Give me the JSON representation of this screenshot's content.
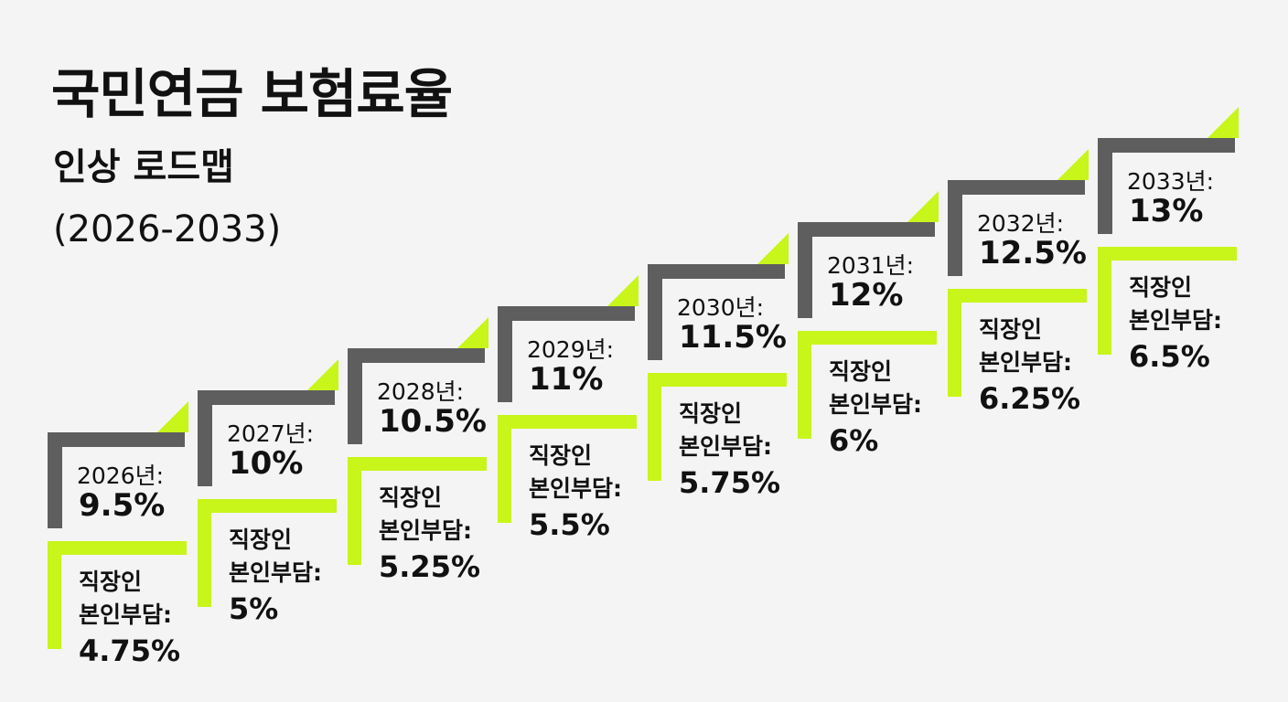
{
  "title": {
    "line1": "국민연금 보험료율",
    "line2": "인상 로드맵",
    "line3": "(2026-2033)"
  },
  "colors": {
    "gray": "#5e5e5e",
    "lime": "#c8f51a",
    "text": "#111111",
    "background": "#f4f4f4"
  },
  "steps": [
    {
      "year": "2026년:",
      "rate": "9.5%",
      "employee_label_1": "직장인",
      "employee_label_2": "본인부담:",
      "employee_rate": "4.75%"
    },
    {
      "year": "2027년:",
      "rate": "10%",
      "employee_label_1": "직장인",
      "employee_label_2": "본인부담:",
      "employee_rate": "5%"
    },
    {
      "year": "2028년:",
      "rate": "10.5%",
      "employee_label_1": "직장인",
      "employee_label_2": "본인부담:",
      "employee_rate": "5.25%"
    },
    {
      "year": "2029년:",
      "rate": "11%",
      "employee_label_1": "직장인",
      "employee_label_2": "본인부담:",
      "employee_rate": "5.5%"
    },
    {
      "year": "2030년:",
      "rate": "11.5%",
      "employee_label_1": "직장인",
      "employee_label_2": "본인부담:",
      "employee_rate": "5.75%"
    },
    {
      "year": "2031년:",
      "rate": "12%",
      "employee_label_1": "직장인",
      "employee_label_2": "본인부담:",
      "employee_rate": "6%"
    },
    {
      "year": "2032년:",
      "rate": "12.5%",
      "employee_label_1": "직장인",
      "employee_label_2": "본인부담:",
      "employee_rate": "6.25%"
    },
    {
      "year": "2033년:",
      "rate": "13%",
      "employee_label_1": "직장인",
      "employee_label_2": "본인부담:",
      "employee_rate": "6.5%"
    }
  ]
}
